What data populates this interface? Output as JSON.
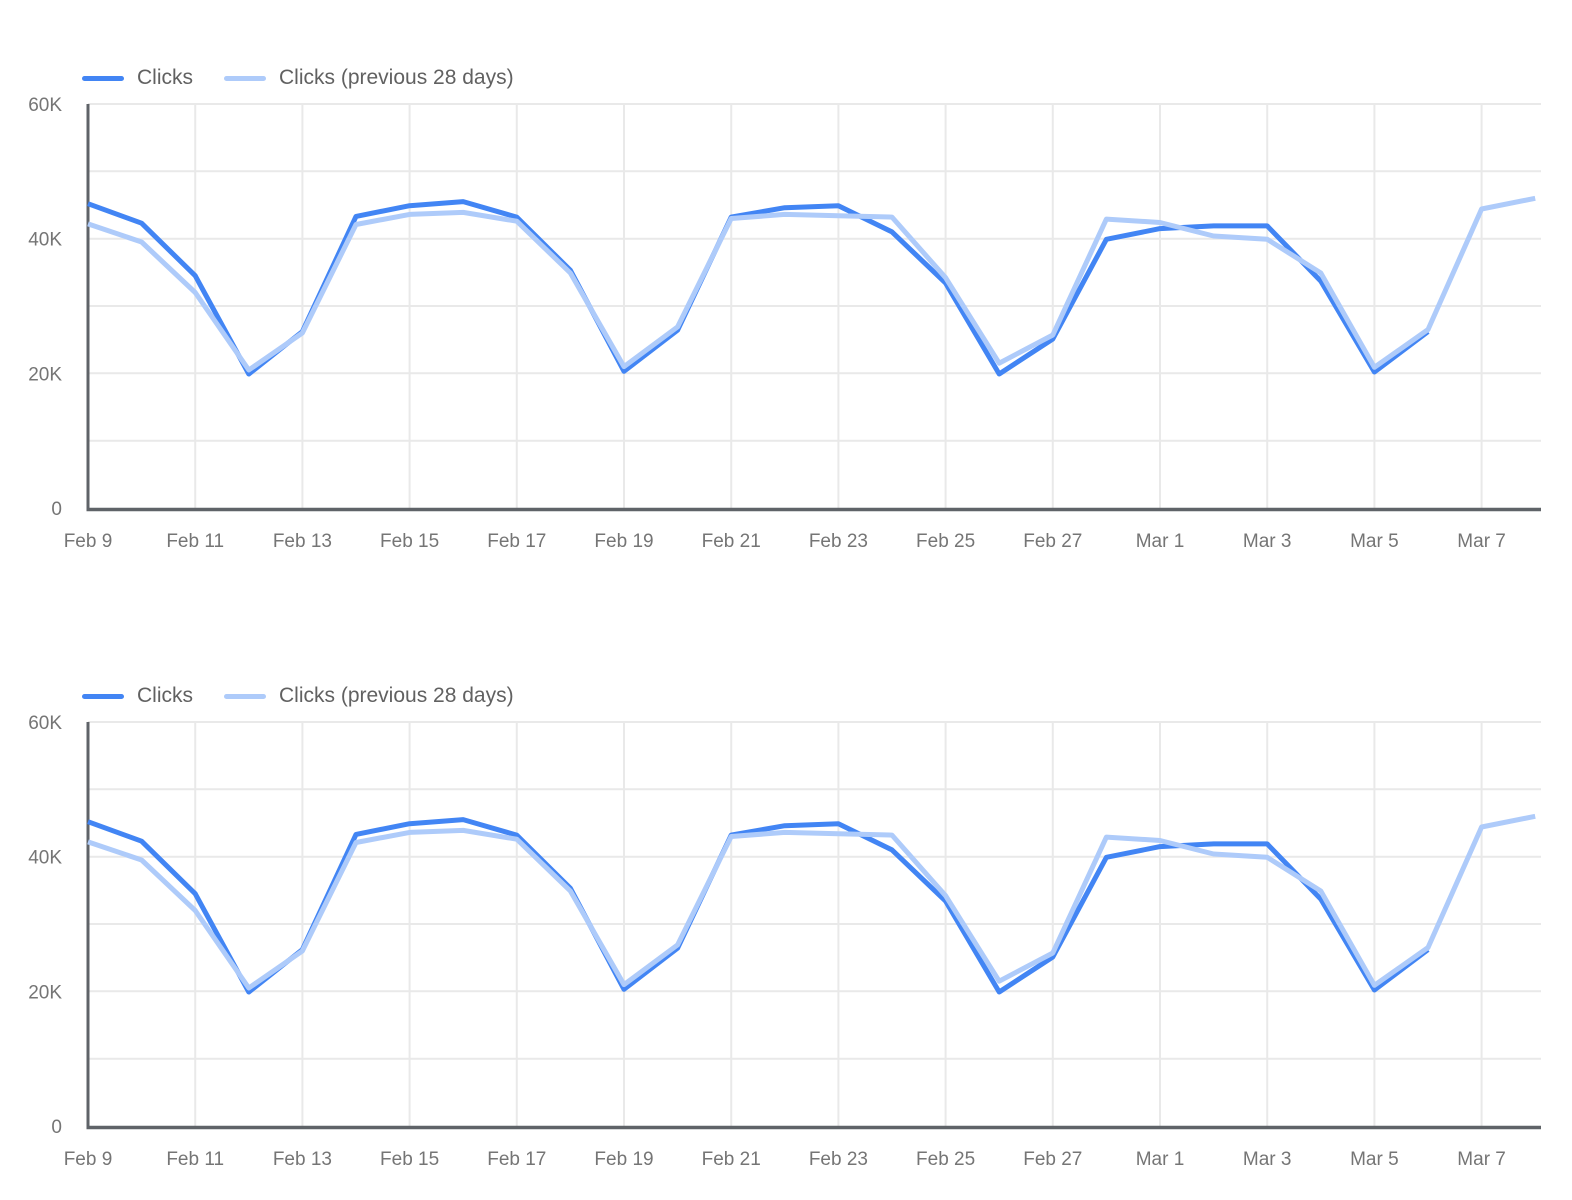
{
  "page": {
    "background": "#ffffff"
  },
  "chart_data": [
    {
      "type": "line",
      "title": "",
      "xlabel": "",
      "ylabel": "",
      "legend_position": "top-left",
      "grid": true,
      "grid_step": 10000,
      "ylim": [
        0,
        60000
      ],
      "y_ticks": [
        {
          "value": 0,
          "label": "0"
        },
        {
          "value": 20000,
          "label": "20K"
        },
        {
          "value": 40000,
          "label": "40K"
        },
        {
          "value": 60000,
          "label": "60K"
        }
      ],
      "tick_labels": [
        "Feb 9",
        "Feb 11",
        "Feb 13",
        "Feb 15",
        "Feb 17",
        "Feb 19",
        "Feb 21",
        "Feb 23",
        "Feb 25",
        "Feb 27",
        "Mar 1",
        "Mar 3",
        "Mar 5",
        "Mar 7"
      ],
      "x": [
        "Feb 9",
        "Feb 10",
        "Feb 11",
        "Feb 12",
        "Feb 13",
        "Feb 14",
        "Feb 15",
        "Feb 16",
        "Feb 17",
        "Feb 18",
        "Feb 19",
        "Feb 20",
        "Feb 21",
        "Feb 22",
        "Feb 23",
        "Feb 24",
        "Feb 25",
        "Feb 26",
        "Feb 27",
        "Feb 28",
        "Mar 1",
        "Mar 2",
        "Mar 3",
        "Mar 4",
        "Mar 5",
        "Mar 6",
        "Mar 7",
        "Mar 8"
      ],
      "series": [
        {
          "name": "Clicks",
          "color": "#4285F4",
          "values": [
            45200,
            42300,
            34500,
            19900,
            26200,
            43300,
            44900,
            45500,
            43200,
            35300,
            20300,
            26400,
            43200,
            44600,
            44900,
            41000,
            33400,
            19900,
            25100,
            39900,
            41500,
            41900,
            41900,
            33700,
            20200,
            26200,
            null,
            null
          ]
        },
        {
          "name": "Clicks (previous 28 days)",
          "color": "#AECBFA",
          "values": [
            42200,
            39500,
            32000,
            20500,
            26000,
            42100,
            43600,
            43900,
            42600,
            34900,
            21000,
            26900,
            43000,
            43600,
            43400,
            43200,
            34200,
            21500,
            25700,
            42900,
            42400,
            40400,
            39900,
            34900,
            20900,
            26500,
            44400,
            46000
          ]
        }
      ],
      "colors": {
        "grid": "#E9E9E9",
        "axis": "#5F6368",
        "labels": "#757575"
      }
    },
    {
      "type": "line",
      "title": "",
      "xlabel": "",
      "ylabel": "",
      "legend_position": "top-left",
      "grid": true,
      "grid_step": 10000,
      "ylim": [
        0,
        60000
      ],
      "y_ticks": [
        {
          "value": 0,
          "label": "0"
        },
        {
          "value": 20000,
          "label": "20K"
        },
        {
          "value": 40000,
          "label": "40K"
        },
        {
          "value": 60000,
          "label": "60K"
        }
      ],
      "tick_labels": [
        "Feb 9",
        "Feb 11",
        "Feb 13",
        "Feb 15",
        "Feb 17",
        "Feb 19",
        "Feb 21",
        "Feb 23",
        "Feb 25",
        "Feb 27",
        "Mar 1",
        "Mar 3",
        "Mar 5",
        "Mar 7"
      ],
      "x": [
        "Feb 9",
        "Feb 10",
        "Feb 11",
        "Feb 12",
        "Feb 13",
        "Feb 14",
        "Feb 15",
        "Feb 16",
        "Feb 17",
        "Feb 18",
        "Feb 19",
        "Feb 20",
        "Feb 21",
        "Feb 22",
        "Feb 23",
        "Feb 24",
        "Feb 25",
        "Feb 26",
        "Feb 27",
        "Feb 28",
        "Mar 1",
        "Mar 2",
        "Mar 3",
        "Mar 4",
        "Mar 5",
        "Mar 6",
        "Mar 7",
        "Mar 8"
      ],
      "series": [
        {
          "name": "Clicks",
          "color": "#4285F4",
          "values": [
            45200,
            42300,
            34500,
            19900,
            26200,
            43300,
            44900,
            45500,
            43200,
            35300,
            20300,
            26400,
            43200,
            44600,
            44900,
            41000,
            33400,
            19900,
            25100,
            39900,
            41500,
            41900,
            41900,
            33700,
            20200,
            26200,
            null,
            null
          ]
        },
        {
          "name": "Clicks (previous 28 days)",
          "color": "#AECBFA",
          "values": [
            42200,
            39500,
            32000,
            20500,
            26000,
            42100,
            43600,
            43900,
            42600,
            34900,
            21000,
            26900,
            43000,
            43600,
            43400,
            43200,
            34200,
            21500,
            25700,
            42900,
            42400,
            40400,
            39900,
            34900,
            20900,
            26500,
            44400,
            46000
          ]
        }
      ],
      "colors": {
        "grid": "#E9E9E9",
        "axis": "#5F6368",
        "labels": "#757575"
      }
    }
  ]
}
